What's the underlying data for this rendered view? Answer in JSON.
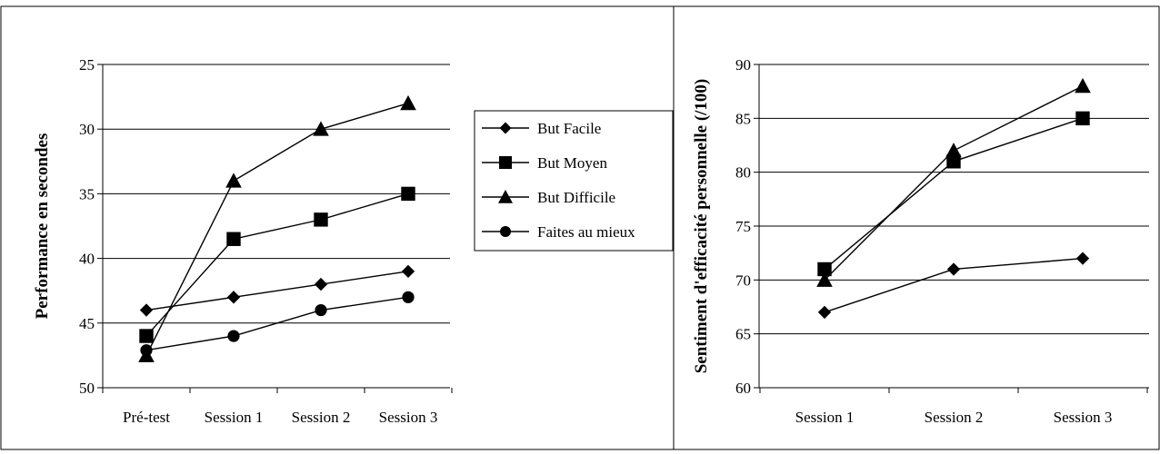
{
  "chart_data": [
    {
      "type": "line",
      "title": "",
      "xlabel": "",
      "ylabel": "Performance en secondes",
      "categories": [
        "Pré-test",
        "Session 1",
        "Session 2",
        "Session 3"
      ],
      "yticks": [
        "25",
        "30",
        "35",
        "40",
        "45",
        "50"
      ],
      "ylim": [
        50,
        25
      ],
      "y_inverted": true,
      "grid": true,
      "legend_position": "right",
      "series": [
        {
          "name": "But Facile",
          "marker": "diamond",
          "values": [
            44,
            43,
            42,
            41
          ]
        },
        {
          "name": "But Moyen",
          "marker": "square",
          "values": [
            46,
            38.5,
            37,
            35
          ]
        },
        {
          "name": "But Difficile",
          "marker": "triangle",
          "values": [
            47.5,
            34,
            30,
            28
          ]
        },
        {
          "name": "Faites au mieux",
          "marker": "circle",
          "values": [
            47.1,
            46,
            44,
            43
          ]
        }
      ]
    },
    {
      "type": "line",
      "title": "",
      "xlabel": "",
      "ylabel": "Sentiment d'efficacité personnelle (/100)",
      "categories": [
        "Session 1",
        "Session 2",
        "Session 3"
      ],
      "yticks": [
        "60",
        "65",
        "70",
        "75",
        "80",
        "85",
        "90"
      ],
      "ylim": [
        60,
        90
      ],
      "grid": true,
      "series": [
        {
          "marker": "diamond",
          "values": [
            67,
            71,
            72
          ]
        },
        {
          "marker": "square",
          "values": [
            71,
            81,
            85
          ]
        },
        {
          "marker": "triangle",
          "values": [
            70,
            82,
            88
          ]
        }
      ]
    }
  ]
}
